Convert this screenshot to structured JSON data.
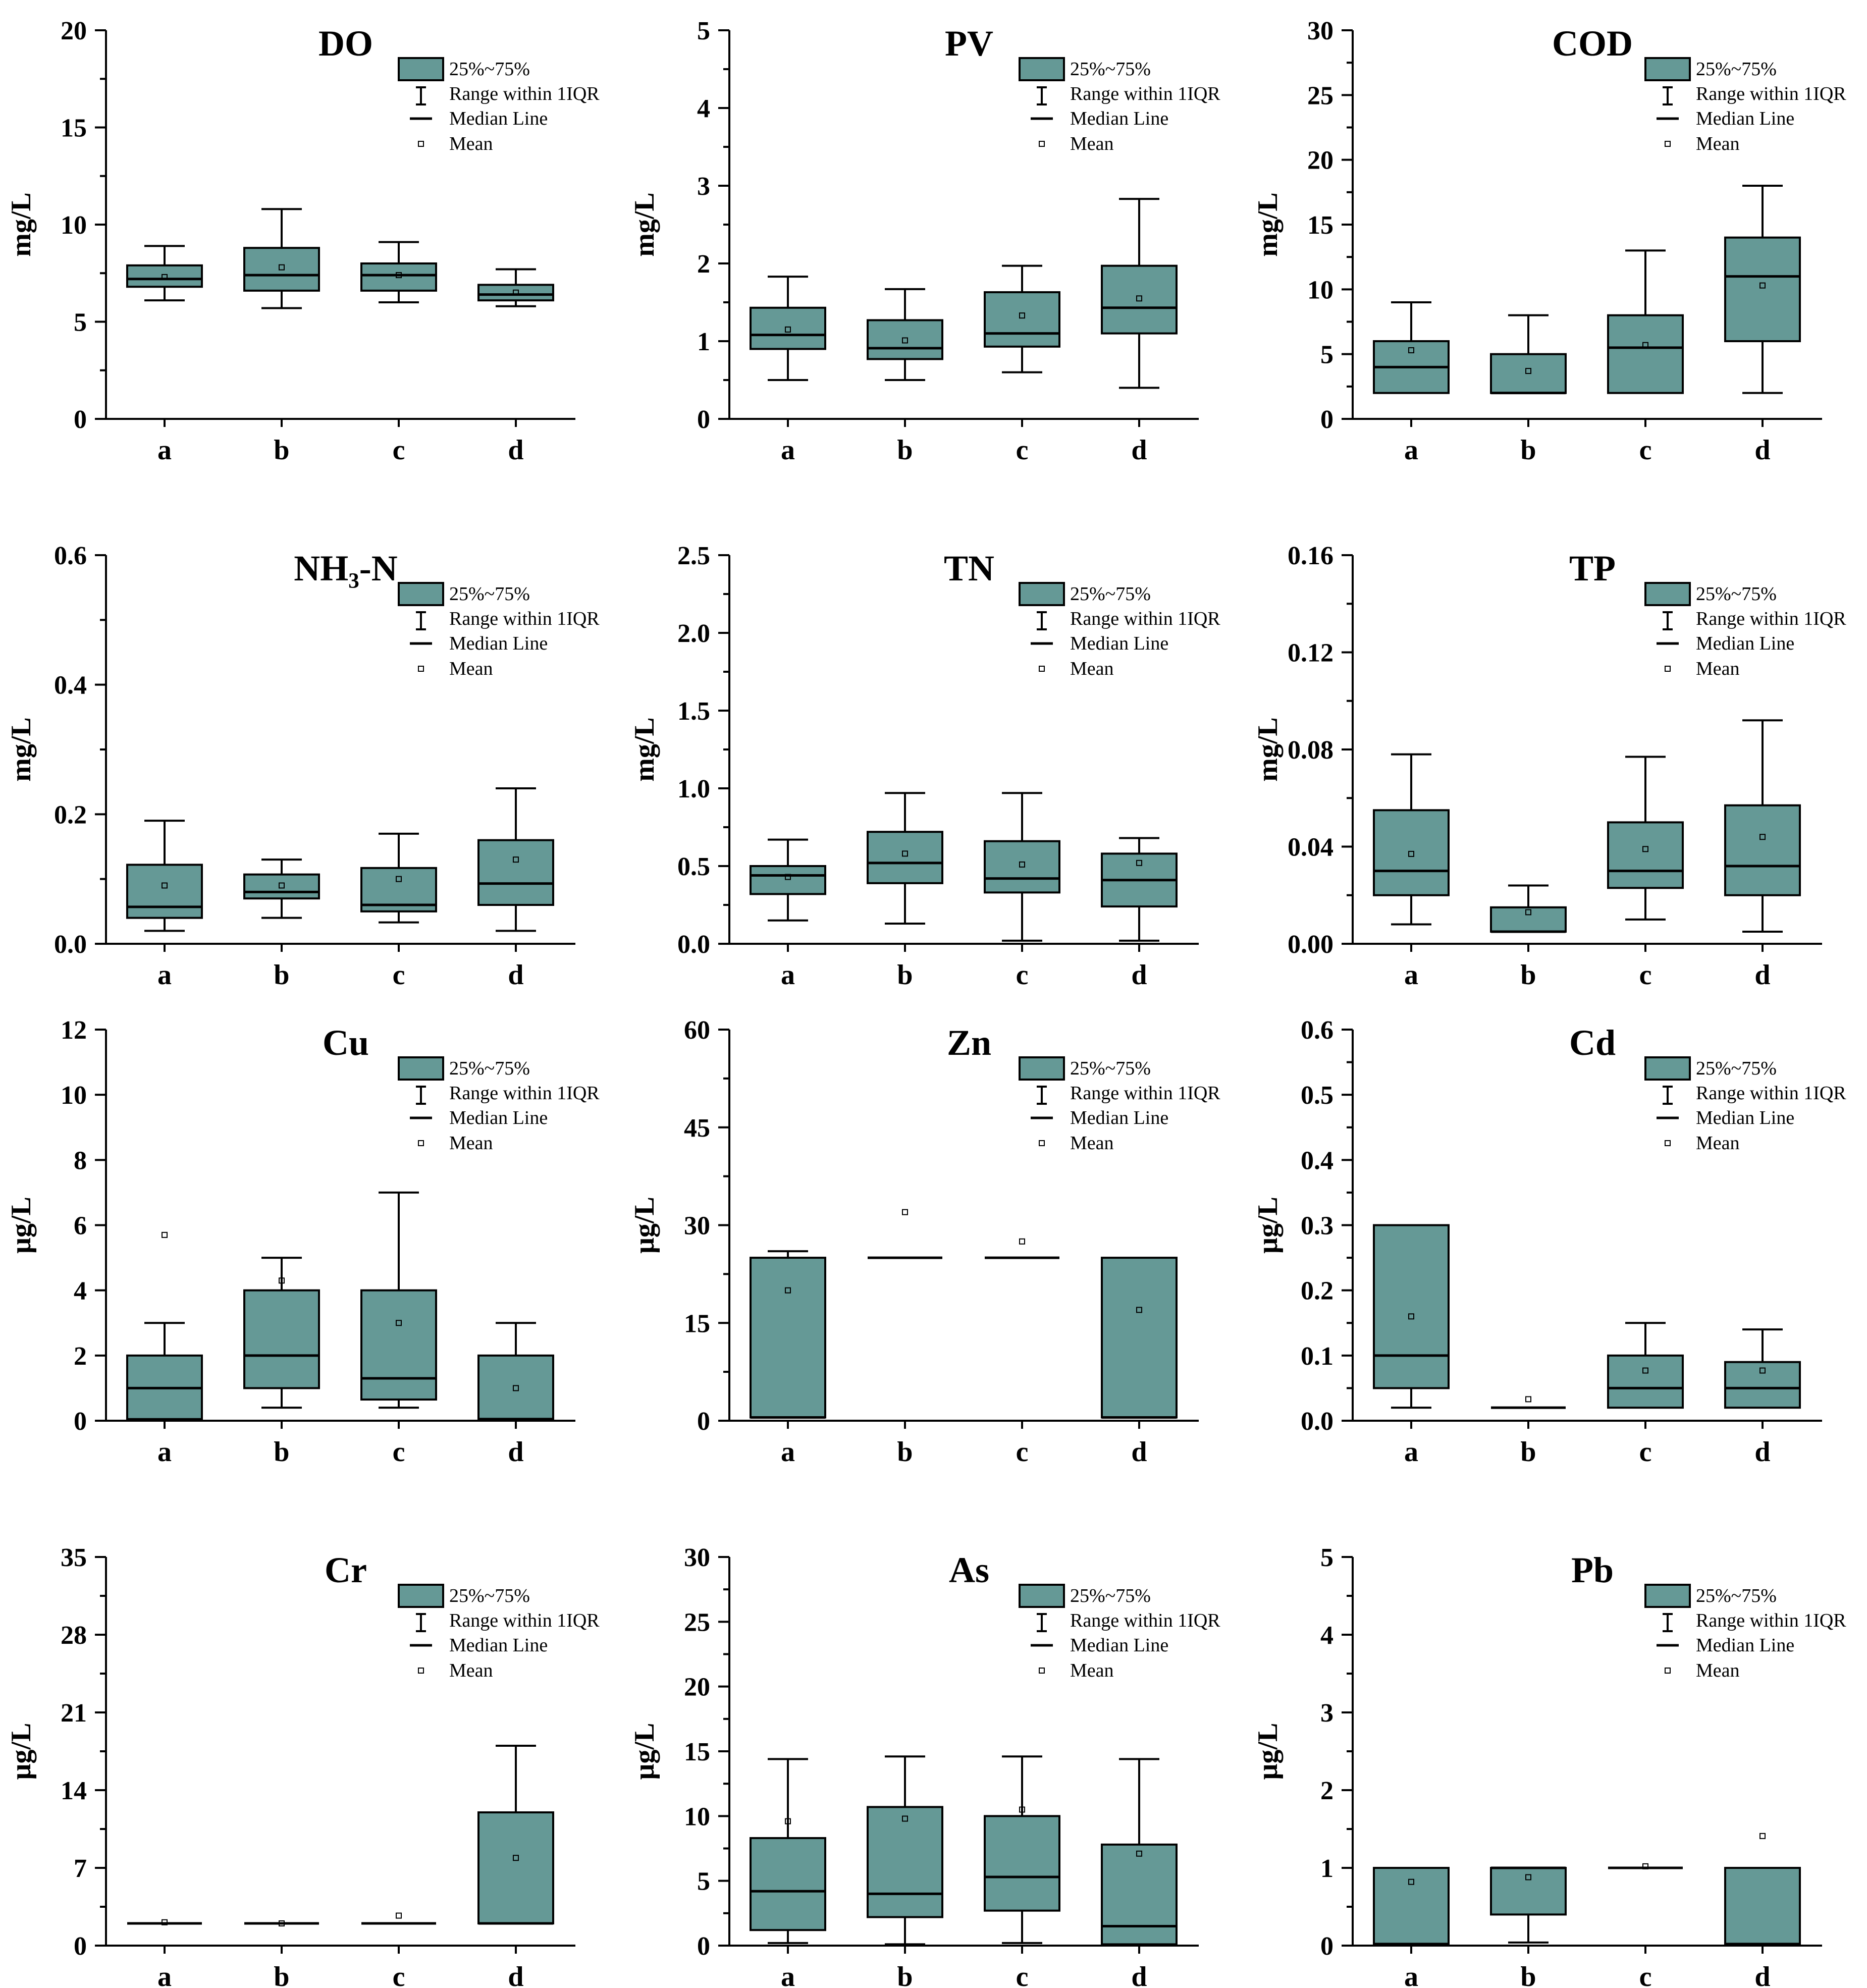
{
  "legend": {
    "box_label": "25%~75%",
    "range_label": "Range within 1IQR",
    "median_label": "Median Line",
    "mean_label": "Mean"
  },
  "colors": {
    "box_fill": "#659996",
    "line": "#000000"
  },
  "chart_data": [
    {
      "type": "box",
      "title": "DO",
      "ylabel": "mg/L",
      "ylim": [
        0,
        20
      ],
      "yticks": [
        "0",
        "5",
        "10",
        "15",
        "20"
      ],
      "ytick_values": [
        0,
        5,
        10,
        15,
        20
      ],
      "minor_ticks": true,
      "categories": [
        "a",
        "b",
        "c",
        "d"
      ],
      "boxes": [
        {
          "min": 6.1,
          "q1": 6.8,
          "median": 7.2,
          "q3": 7.9,
          "max": 8.9,
          "mean": 7.3
        },
        {
          "min": 5.7,
          "q1": 6.6,
          "median": 7.4,
          "q3": 8.8,
          "max": 10.8,
          "mean": 7.8
        },
        {
          "min": 6.0,
          "q1": 6.6,
          "median": 7.4,
          "q3": 8.0,
          "max": 9.1,
          "mean": 7.4
        },
        {
          "min": 5.8,
          "q1": 6.1,
          "median": 6.4,
          "q3": 6.9,
          "max": 7.7,
          "mean": 6.5
        }
      ]
    },
    {
      "type": "box",
      "title": "PV",
      "ylabel": "mg/L",
      "ylim": [
        0,
        5
      ],
      "yticks": [
        "0",
        "1",
        "2",
        "3",
        "4",
        "5"
      ],
      "ytick_values": [
        0,
        1,
        2,
        3,
        4,
        5
      ],
      "minor_ticks": true,
      "categories": [
        "a",
        "b",
        "c",
        "d"
      ],
      "boxes": [
        {
          "min": 0.5,
          "q1": 0.9,
          "median": 1.08,
          "q3": 1.43,
          "max": 1.83,
          "mean": 1.15
        },
        {
          "min": 0.5,
          "q1": 0.77,
          "median": 0.91,
          "q3": 1.27,
          "max": 1.67,
          "mean": 1.01
        },
        {
          "min": 0.6,
          "q1": 0.93,
          "median": 1.1,
          "q3": 1.63,
          "max": 1.97,
          "mean": 1.33
        },
        {
          "min": 0.4,
          "q1": 1.1,
          "median": 1.43,
          "q3": 1.97,
          "max": 2.83,
          "mean": 1.55
        }
      ]
    },
    {
      "type": "box",
      "title": "COD",
      "ylabel": "mg/L",
      "ylim": [
        0,
        30
      ],
      "yticks": [
        "0",
        "5",
        "10",
        "15",
        "20",
        "25",
        "30"
      ],
      "ytick_values": [
        0,
        5,
        10,
        15,
        20,
        25,
        30
      ],
      "minor_ticks": true,
      "categories": [
        "a",
        "b",
        "c",
        "d"
      ],
      "boxes": [
        {
          "min": 2,
          "q1": 2,
          "median": 4,
          "q3": 6,
          "max": 9,
          "mean": 5.3
        },
        {
          "min": 2,
          "q1": 2,
          "median": 2,
          "q3": 5,
          "max": 8,
          "mean": 3.7
        },
        {
          "min": 2,
          "q1": 2,
          "median": 5.5,
          "q3": 8,
          "max": 13,
          "mean": 5.7
        },
        {
          "min": 2,
          "q1": 6,
          "median": 11,
          "q3": 14,
          "max": 18,
          "mean": 10.3
        }
      ]
    },
    {
      "type": "box",
      "title": "NH₃-N",
      "ylabel": "mg/L",
      "ylim": [
        0,
        0.6
      ],
      "yticks": [
        "0.0",
        "0.2",
        "0.4",
        "0.6"
      ],
      "ytick_values": [
        0,
        0.2,
        0.4,
        0.6
      ],
      "minor_ticks": true,
      "categories": [
        "a",
        "b",
        "c",
        "d"
      ],
      "boxes": [
        {
          "min": 0.02,
          "q1": 0.04,
          "median": 0.057,
          "q3": 0.122,
          "max": 0.19,
          "mean": 0.09
        },
        {
          "min": 0.04,
          "q1": 0.07,
          "median": 0.08,
          "q3": 0.107,
          "max": 0.13,
          "mean": 0.09
        },
        {
          "min": 0.033,
          "q1": 0.05,
          "median": 0.06,
          "q3": 0.117,
          "max": 0.17,
          "mean": 0.1
        },
        {
          "min": 0.02,
          "q1": 0.06,
          "median": 0.093,
          "q3": 0.16,
          "max": 0.24,
          "mean": 0.13
        }
      ]
    },
    {
      "type": "box",
      "title": "TN",
      "ylabel": "mg/L",
      "ylim": [
        0,
        2.5
      ],
      "yticks": [
        "0.0",
        "0.5",
        "1.0",
        "1.5",
        "2.0",
        "2.5"
      ],
      "ytick_values": [
        0,
        0.5,
        1.0,
        1.5,
        2.0,
        2.5
      ],
      "minor_ticks": true,
      "categories": [
        "a",
        "b",
        "c",
        "d"
      ],
      "boxes": [
        {
          "min": 0.15,
          "q1": 0.32,
          "median": 0.44,
          "q3": 0.5,
          "max": 0.67,
          "mean": 0.43
        },
        {
          "min": 0.13,
          "q1": 0.39,
          "median": 0.52,
          "q3": 0.72,
          "max": 0.97,
          "mean": 0.58
        },
        {
          "min": 0.02,
          "q1": 0.33,
          "median": 0.42,
          "q3": 0.66,
          "max": 0.97,
          "mean": 0.51
        },
        {
          "min": 0.02,
          "q1": 0.24,
          "median": 0.41,
          "q3": 0.58,
          "max": 0.68,
          "mean": 0.52
        }
      ]
    },
    {
      "type": "box",
      "title": "TP",
      "ylabel": "mg/L",
      "ylim": [
        0,
        0.16
      ],
      "yticks": [
        "0.00",
        "0.04",
        "0.08",
        "0.12",
        "0.16"
      ],
      "ytick_values": [
        0,
        0.04,
        0.08,
        0.12,
        0.16
      ],
      "minor_ticks": true,
      "categories": [
        "a",
        "b",
        "c",
        "d"
      ],
      "boxes": [
        {
          "min": 0.008,
          "q1": 0.02,
          "median": 0.03,
          "q3": 0.055,
          "max": 0.078,
          "mean": 0.037
        },
        {
          "min": 0.005,
          "q1": 0.005,
          "median": 0.005,
          "q3": 0.015,
          "max": 0.024,
          "mean": 0.013
        },
        {
          "min": 0.01,
          "q1": 0.023,
          "median": 0.03,
          "q3": 0.05,
          "max": 0.077,
          "mean": 0.039
        },
        {
          "min": 0.005,
          "q1": 0.02,
          "median": 0.032,
          "q3": 0.057,
          "max": 0.092,
          "mean": 0.044
        }
      ]
    },
    {
      "type": "box",
      "title": "Cu",
      "ylabel": "μg/L",
      "ylim": [
        0,
        12
      ],
      "yticks": [
        "0",
        "2",
        "4",
        "6",
        "8",
        "10",
        "12"
      ],
      "ytick_values": [
        0,
        2,
        4,
        6,
        8,
        10,
        12
      ],
      "minor_ticks": false,
      "categories": [
        "a",
        "b",
        "c",
        "d"
      ],
      "boxes": [
        {
          "min": 0.05,
          "q1": 0.05,
          "median": 1.0,
          "q3": 2.0,
          "max": 3.0,
          "mean": 5.7
        },
        {
          "min": 0.4,
          "q1": 1.0,
          "median": 2.0,
          "q3": 4.0,
          "max": 5.0,
          "mean": 4.3
        },
        {
          "min": 0.4,
          "q1": 0.65,
          "median": 1.3,
          "q3": 4.0,
          "max": 7.0,
          "mean": 3.0
        },
        {
          "min": 0.05,
          "q1": 0.05,
          "median": 0.05,
          "q3": 2.0,
          "max": 3.0,
          "mean": 1.0
        }
      ]
    },
    {
      "type": "box",
      "title": "Zn",
      "ylabel": "μg/L",
      "ylim": [
        0,
        60
      ],
      "yticks": [
        "0",
        "15",
        "30",
        "45",
        "60"
      ],
      "ytick_values": [
        0,
        15,
        30,
        45,
        60
      ],
      "minor_ticks": true,
      "categories": [
        "a",
        "b",
        "c",
        "d"
      ],
      "boxes": [
        {
          "min": 0.5,
          "q1": 0.5,
          "median": 0.5,
          "q3": 25,
          "max": 26,
          "mean": 20
        },
        {
          "min": 25,
          "q1": 25,
          "median": 25,
          "q3": 25,
          "max": 25,
          "mean": 32
        },
        {
          "min": 25,
          "q1": 25,
          "median": 25,
          "q3": 25,
          "max": 25,
          "mean": 27.5
        },
        {
          "min": 0.5,
          "q1": 0.5,
          "median": 0.5,
          "q3": 25,
          "max": 25,
          "mean": 17
        }
      ]
    },
    {
      "type": "box",
      "title": "Cd",
      "ylabel": "μg/L",
      "ylim": [
        0,
        0.6
      ],
      "yticks": [
        "0.0",
        "0.1",
        "0.2",
        "0.3",
        "0.4",
        "0.5",
        "0.6"
      ],
      "ytick_values": [
        0,
        0.1,
        0.2,
        0.3,
        0.4,
        0.5,
        0.6
      ],
      "minor_ticks": true,
      "categories": [
        "a",
        "b",
        "c",
        "d"
      ],
      "boxes": [
        {
          "min": 0.02,
          "q1": 0.05,
          "median": 0.1,
          "q3": 0.3,
          "max": 0.3,
          "mean": 0.16
        },
        {
          "min": 0.02,
          "q1": 0.02,
          "median": 0.02,
          "q3": 0.02,
          "max": 0.02,
          "mean": 0.033
        },
        {
          "min": 0.02,
          "q1": 0.02,
          "median": 0.05,
          "q3": 0.1,
          "max": 0.15,
          "mean": 0.077
        },
        {
          "min": 0.02,
          "q1": 0.02,
          "median": 0.05,
          "q3": 0.09,
          "max": 0.14,
          "mean": 0.077
        }
      ]
    },
    {
      "type": "box",
      "title": "Cr",
      "ylabel": "μg/L",
      "ylim": [
        0,
        35
      ],
      "yticks": [
        "0",
        "7",
        "14",
        "21",
        "28",
        "35"
      ],
      "ytick_values": [
        0,
        7,
        14,
        21,
        28,
        35
      ],
      "minor_ticks": true,
      "categories": [
        "a",
        "b",
        "c",
        "d"
      ],
      "boxes": [
        {
          "min": 2,
          "q1": 2,
          "median": 2,
          "q3": 2,
          "max": 2,
          "mean": 2.1
        },
        {
          "min": 2,
          "q1": 2,
          "median": 2,
          "q3": 2,
          "max": 2,
          "mean": 2.0
        },
        {
          "min": 2,
          "q1": 2,
          "median": 2,
          "q3": 2,
          "max": 2,
          "mean": 2.7
        },
        {
          "min": 2,
          "q1": 2,
          "median": 2,
          "q3": 12,
          "max": 18,
          "mean": 7.9
        }
      ]
    },
    {
      "type": "box",
      "title": "As",
      "ylabel": "μg/L",
      "ylim": [
        0,
        30
      ],
      "yticks": [
        "0",
        "5",
        "10",
        "15",
        "20",
        "25",
        "30"
      ],
      "ytick_values": [
        0,
        5,
        10,
        15,
        20,
        25,
        30
      ],
      "minor_ticks": true,
      "categories": [
        "a",
        "b",
        "c",
        "d"
      ],
      "boxes": [
        {
          "min": 0.2,
          "q1": 1.2,
          "median": 4.2,
          "q3": 8.3,
          "max": 14.4,
          "mean": 9.6
        },
        {
          "min": 0.1,
          "q1": 2.2,
          "median": 4.0,
          "q3": 10.7,
          "max": 14.6,
          "mean": 9.8
        },
        {
          "min": 0.2,
          "q1": 2.7,
          "median": 5.3,
          "q3": 10.0,
          "max": 14.6,
          "mean": 10.5
        },
        {
          "min": 0.1,
          "q1": 0.1,
          "median": 1.5,
          "q3": 7.8,
          "max": 14.4,
          "mean": 7.1
        }
      ]
    },
    {
      "type": "box",
      "title": "Pb",
      "ylabel": "μg/L",
      "ylim": [
        0,
        5
      ],
      "yticks": [
        "0",
        "1",
        "2",
        "3",
        "4",
        "5"
      ],
      "ytick_values": [
        0,
        1,
        2,
        3,
        4,
        5
      ],
      "minor_ticks": true,
      "categories": [
        "a",
        "b",
        "c",
        "d"
      ],
      "boxes": [
        {
          "min": 0.02,
          "q1": 0.02,
          "median": 0.02,
          "q3": 1.0,
          "max": 1.0,
          "mean": 0.82
        },
        {
          "min": 0.04,
          "q1": 0.4,
          "median": 1.0,
          "q3": 1.0,
          "max": 1.0,
          "mean": 0.88
        },
        {
          "min": 1.0,
          "q1": 1.0,
          "median": 1.0,
          "q3": 1.0,
          "max": 1.0,
          "mean": 1.02
        },
        {
          "min": 0.02,
          "q1": 0.02,
          "median": 0.02,
          "q3": 1.0,
          "max": 1.0,
          "mean": 1.41
        }
      ]
    }
  ]
}
